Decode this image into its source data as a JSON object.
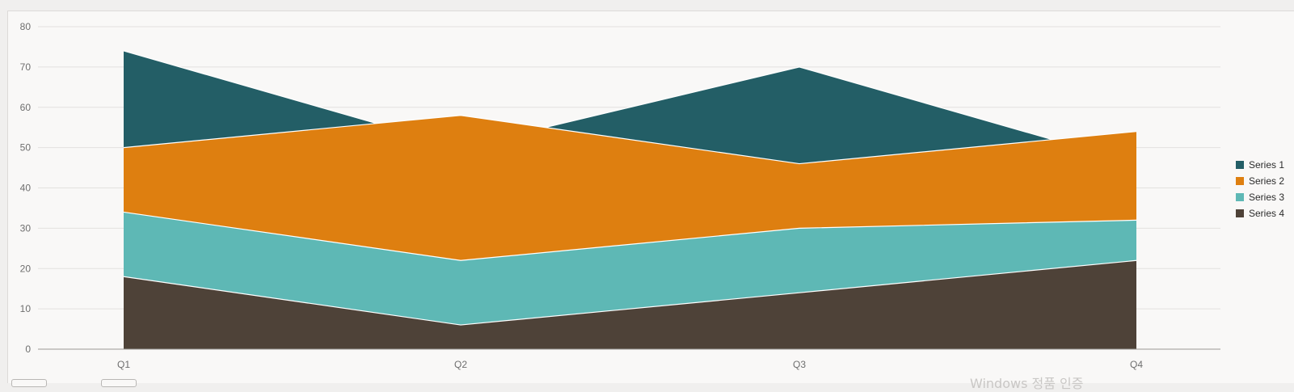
{
  "chart_data": {
    "type": "area",
    "stacked": false,
    "categories": [
      "Q1",
      "Q2",
      "Q3",
      "Q4"
    ],
    "series": [
      {
        "name": "Series 1",
        "color": "#235e66",
        "values": [
          74,
          50,
          70,
          46
        ]
      },
      {
        "name": "Series 2",
        "color": "#de7f10",
        "values": [
          50,
          58,
          46,
          54
        ]
      },
      {
        "name": "Series 3",
        "color": "#5eb8b5",
        "values": [
          34,
          22,
          30,
          32
        ]
      },
      {
        "name": "Series 4",
        "color": "#4e4238",
        "values": [
          18,
          6,
          14,
          22
        ]
      }
    ],
    "ylim": [
      0,
      80
    ],
    "yticks": [
      "0",
      "10",
      "20",
      "30",
      "40",
      "50",
      "60",
      "70",
      "80"
    ],
    "grid": true,
    "legend_position": "right",
    "xlabel": "",
    "ylabel": ""
  },
  "watermark": "Windows 정품 인증"
}
